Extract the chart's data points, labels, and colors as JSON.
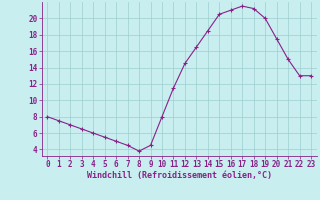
{
  "x": [
    0,
    1,
    2,
    3,
    4,
    5,
    6,
    7,
    8,
    9,
    10,
    11,
    12,
    13,
    14,
    15,
    16,
    17,
    18,
    19,
    20,
    21,
    22,
    23
  ],
  "y": [
    8.0,
    7.5,
    7.0,
    6.5,
    6.0,
    5.5,
    5.0,
    4.5,
    3.8,
    4.5,
    8.0,
    11.5,
    14.5,
    16.5,
    18.5,
    20.5,
    21.0,
    21.5,
    21.2,
    20.0,
    17.5,
    15.0,
    13.0,
    13.0
  ],
  "line_color": "#882288",
  "marker": "+",
  "marker_size": 3,
  "marker_linewidth": 0.8,
  "bg_color": "#c8eef0",
  "grid_color": "#9ecece",
  "xlabel": "Windchill (Refroidissement éolien,°C)",
  "ylabel": "",
  "xtick_labels": [
    "0",
    "1",
    "2",
    "3",
    "4",
    "5",
    "6",
    "7",
    "8",
    "9",
    "10",
    "11",
    "12",
    "13",
    "14",
    "15",
    "16",
    "17",
    "18",
    "19",
    "20",
    "21",
    "22",
    "23"
  ],
  "ytick_labels": [
    "4",
    "6",
    "8",
    "10",
    "12",
    "14",
    "16",
    "18",
    "20"
  ],
  "yticks": [
    4,
    6,
    8,
    10,
    12,
    14,
    16,
    18,
    20
  ],
  "xticks": [
    0,
    1,
    2,
    3,
    4,
    5,
    6,
    7,
    8,
    9,
    10,
    11,
    12,
    13,
    14,
    15,
    16,
    17,
    18,
    19,
    20,
    21,
    22,
    23
  ],
  "ylim": [
    3.2,
    22.0
  ],
  "xlim": [
    -0.5,
    23.5
  ],
  "axis_color": "#882288",
  "tick_color": "#882288",
  "label_fontsize": 6.0,
  "tick_fontsize": 5.5,
  "linewidth": 0.8
}
